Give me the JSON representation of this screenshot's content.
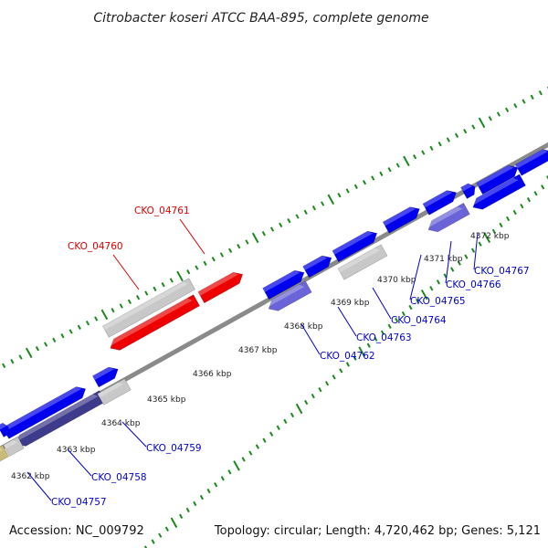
{
  "title": "Citrobacter koseri ATCC BAA-895, complete genome",
  "footer": {
    "accession": "Accession: NC_009792",
    "summary": "Topology: circular; Length: 4,720,462 bp; Genes: 5,121"
  },
  "colors": {
    "forward_cds": "#0000ee",
    "reverse_cds": "#6a64d8",
    "reverse_cds_dark": "#3e3a8c",
    "rna": "#ee0000",
    "other_feature": "#c8c8c8",
    "olive_feature": "#c8bb78",
    "backbone": "#888888",
    "gc_dots": "#1a8a1a",
    "forward_label": "#0000cc",
    "highlight_label": "#dd0000"
  },
  "ticks": [
    "4362 kbp",
    "4363 kbp",
    "4364 kbp",
    "4365 kbp",
    "4366 kbp",
    "4367 kbp",
    "4368 kbp",
    "4369 kbp",
    "4370 kbp",
    "4371 kbp",
    "4372 kbp"
  ],
  "gene_labels_top": [
    {
      "text": "CKO_04761",
      "color": "#dd0000"
    },
    {
      "text": "CKO_04760",
      "color": "#dd0000"
    }
  ],
  "gene_labels_bottom": [
    "CKO_04757",
    "CKO_04758",
    "CKO_04759",
    "CKO_04762",
    "CKO_04763",
    "CKO_04764",
    "CKO_04765",
    "CKO_04766",
    "CKO_04767"
  ]
}
